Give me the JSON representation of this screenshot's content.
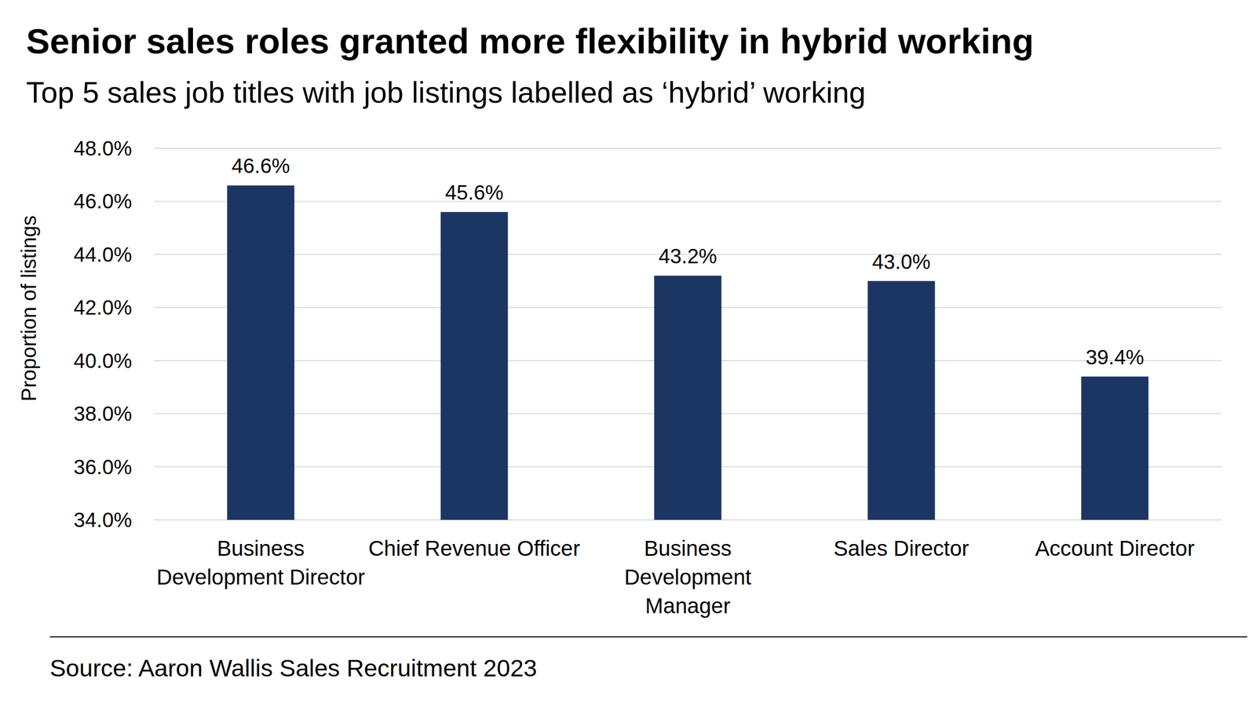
{
  "chart_data": {
    "type": "bar",
    "title": "Senior sales roles granted more flexibility in hybrid working",
    "subtitle": "Top 5 sales job titles with job listings labelled as ‘hybrid’ working",
    "y_label": "Proportion of listings",
    "source": "Source: Aaron Wallis Sales Recruitment 2023",
    "categories": [
      "Business Development Director",
      "Chief Revenue Officer",
      "Business Development Manager",
      "Sales Director",
      "Account Director"
    ],
    "values": [
      46.6,
      45.6,
      43.2,
      43.0,
      39.4
    ],
    "value_labels": [
      "46.6%",
      "45.6%",
      "43.2%",
      "43.0%",
      "39.4%"
    ],
    "color": "#1c3664",
    "ylim": [
      34,
      48
    ],
    "yticks": [
      {
        "value": 34,
        "label": "34.0%"
      },
      {
        "value": 36,
        "label": "36.0%"
      },
      {
        "value": 38,
        "label": "38.0%"
      },
      {
        "value": 40,
        "label": "40.0%"
      },
      {
        "value": 42,
        "label": "42.0%"
      },
      {
        "value": 44,
        "label": "44.0%"
      },
      {
        "value": 46,
        "label": "46.0%"
      },
      {
        "value": 48,
        "label": "48.0%"
      }
    ],
    "grid": true,
    "data_labels": true
  }
}
